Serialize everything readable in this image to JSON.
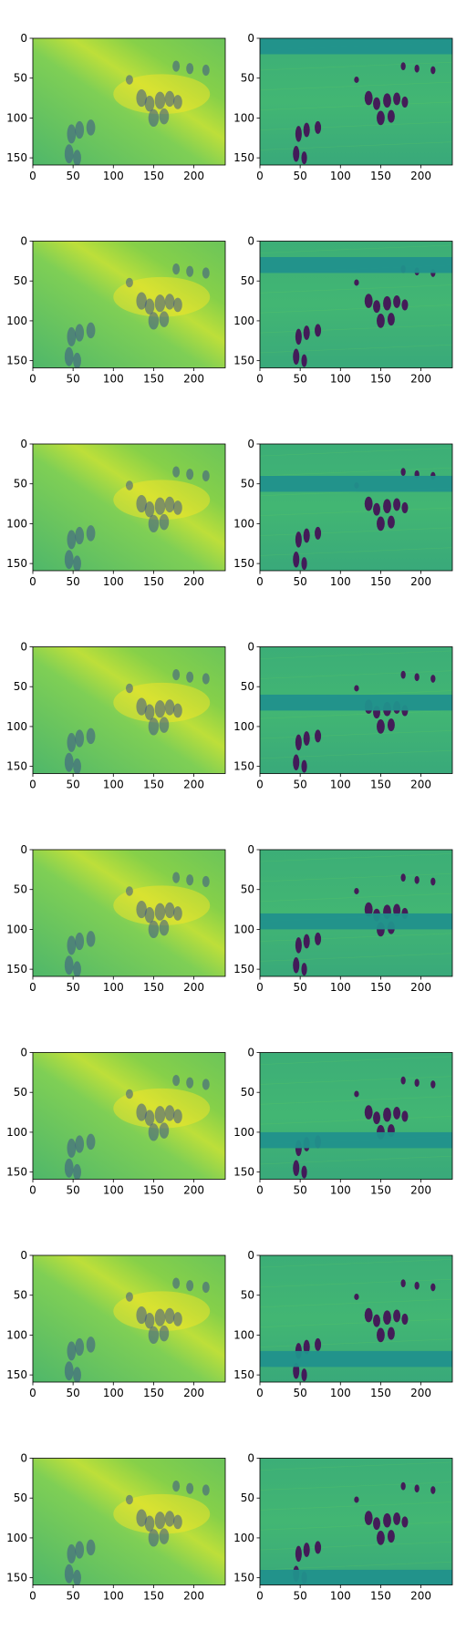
{
  "figure": {
    "grid_rows": 8,
    "grid_cols": 2,
    "colormap": "viridis",
    "colormap_stops": [
      "#440154",
      "#3b528b",
      "#21918c",
      "#5ec962",
      "#fde725"
    ],
    "description_colors": {
      "axis": "#000000",
      "background": "#ffffff"
    }
  },
  "chart_data": [
    {
      "type": "heatmap",
      "row": 1,
      "column": "left",
      "kind": "reconstruction",
      "x_ticks": [
        "0",
        "50",
        "100",
        "150",
        "200"
      ],
      "y_ticks": [
        "0",
        "50",
        "100",
        "150"
      ],
      "xlim": [
        0,
        239
      ],
      "ylim": [
        159,
        0
      ],
      "blank_band_y": null
    },
    {
      "type": "heatmap",
      "row": 1,
      "column": "right",
      "kind": "masked_input",
      "x_ticks": [
        "0",
        "50",
        "100",
        "150",
        "200"
      ],
      "y_ticks": [
        "0",
        "50",
        "100",
        "150"
      ],
      "xlim": [
        0,
        239
      ],
      "ylim": [
        159,
        0
      ],
      "blank_band_y": [
        0,
        20
      ]
    },
    {
      "type": "heatmap",
      "row": 2,
      "column": "left",
      "kind": "reconstruction",
      "x_ticks": [
        "0",
        "50",
        "100",
        "150",
        "200"
      ],
      "y_ticks": [
        "0",
        "50",
        "100",
        "150"
      ],
      "xlim": [
        0,
        239
      ],
      "ylim": [
        159,
        0
      ],
      "blank_band_y": null
    },
    {
      "type": "heatmap",
      "row": 2,
      "column": "right",
      "kind": "masked_input",
      "x_ticks": [
        "0",
        "50",
        "100",
        "150",
        "200"
      ],
      "y_ticks": [
        "0",
        "50",
        "100",
        "150"
      ],
      "xlim": [
        0,
        239
      ],
      "ylim": [
        159,
        0
      ],
      "blank_band_y": [
        20,
        40
      ]
    },
    {
      "type": "heatmap",
      "row": 3,
      "column": "left",
      "kind": "reconstruction",
      "x_ticks": [
        "0",
        "50",
        "100",
        "150",
        "200"
      ],
      "y_ticks": [
        "0",
        "50",
        "100",
        "150"
      ],
      "xlim": [
        0,
        239
      ],
      "ylim": [
        159,
        0
      ],
      "blank_band_y": null
    },
    {
      "type": "heatmap",
      "row": 3,
      "column": "right",
      "kind": "masked_input",
      "x_ticks": [
        "0",
        "50",
        "100",
        "150",
        "200"
      ],
      "y_ticks": [
        "0",
        "50",
        "100",
        "150"
      ],
      "xlim": [
        0,
        239
      ],
      "ylim": [
        159,
        0
      ],
      "blank_band_y": [
        40,
        60
      ]
    },
    {
      "type": "heatmap",
      "row": 4,
      "column": "left",
      "kind": "reconstruction",
      "x_ticks": [
        "0",
        "50",
        "100",
        "150",
        "200"
      ],
      "y_ticks": [
        "0",
        "50",
        "100",
        "150"
      ],
      "xlim": [
        0,
        239
      ],
      "ylim": [
        159,
        0
      ],
      "blank_band_y": null
    },
    {
      "type": "heatmap",
      "row": 4,
      "column": "right",
      "kind": "masked_input",
      "x_ticks": [
        "0",
        "50",
        "100",
        "150",
        "200"
      ],
      "y_ticks": [
        "0",
        "50",
        "100",
        "150"
      ],
      "xlim": [
        0,
        239
      ],
      "ylim": [
        159,
        0
      ],
      "blank_band_y": [
        60,
        80
      ]
    },
    {
      "type": "heatmap",
      "row": 5,
      "column": "left",
      "kind": "reconstruction",
      "x_ticks": [
        "0",
        "50",
        "100",
        "150",
        "200"
      ],
      "y_ticks": [
        "0",
        "50",
        "100",
        "150"
      ],
      "xlim": [
        0,
        239
      ],
      "ylim": [
        159,
        0
      ],
      "blank_band_y": null
    },
    {
      "type": "heatmap",
      "row": 5,
      "column": "right",
      "kind": "masked_input",
      "x_ticks": [
        "0",
        "50",
        "100",
        "150",
        "200"
      ],
      "y_ticks": [
        "0",
        "50",
        "100",
        "150"
      ],
      "xlim": [
        0,
        239
      ],
      "ylim": [
        159,
        0
      ],
      "blank_band_y": [
        80,
        100
      ]
    },
    {
      "type": "heatmap",
      "row": 6,
      "column": "left",
      "kind": "reconstruction",
      "x_ticks": [
        "0",
        "50",
        "100",
        "150",
        "200"
      ],
      "y_ticks": [
        "0",
        "50",
        "100",
        "150"
      ],
      "xlim": [
        0,
        239
      ],
      "ylim": [
        159,
        0
      ],
      "blank_band_y": null
    },
    {
      "type": "heatmap",
      "row": 6,
      "column": "right",
      "kind": "masked_input",
      "x_ticks": [
        "0",
        "50",
        "100",
        "150",
        "200"
      ],
      "y_ticks": [
        "0",
        "50",
        "100",
        "150"
      ],
      "xlim": [
        0,
        239
      ],
      "ylim": [
        159,
        0
      ],
      "blank_band_y": [
        100,
        120
      ]
    },
    {
      "type": "heatmap",
      "row": 7,
      "column": "left",
      "kind": "reconstruction",
      "x_ticks": [
        "0",
        "50",
        "100",
        "150",
        "200"
      ],
      "y_ticks": [
        "0",
        "50",
        "100",
        "150"
      ],
      "xlim": [
        0,
        239
      ],
      "ylim": [
        159,
        0
      ],
      "blank_band_y": null
    },
    {
      "type": "heatmap",
      "row": 7,
      "column": "right",
      "kind": "masked_input",
      "x_ticks": [
        "0",
        "50",
        "100",
        "150",
        "200"
      ],
      "y_ticks": [
        "0",
        "50",
        "100",
        "150"
      ],
      "xlim": [
        0,
        239
      ],
      "ylim": [
        159,
        0
      ],
      "blank_band_y": [
        120,
        140
      ]
    },
    {
      "type": "heatmap",
      "row": 8,
      "column": "left",
      "kind": "reconstruction",
      "x_ticks": [
        "0",
        "50",
        "100",
        "150",
        "200"
      ],
      "y_ticks": [
        "0",
        "50",
        "100",
        "150"
      ],
      "xlim": [
        0,
        239
      ],
      "ylim": [
        159,
        0
      ],
      "blank_band_y": null
    },
    {
      "type": "heatmap",
      "row": 8,
      "column": "right",
      "kind": "masked_input",
      "x_ticks": [
        "0",
        "50",
        "100",
        "150",
        "200"
      ],
      "y_ticks": [
        "0",
        "50",
        "100",
        "150"
      ],
      "xlim": [
        0,
        239
      ],
      "ylim": [
        159,
        0
      ],
      "blank_band_y": [
        140,
        159
      ]
    }
  ]
}
